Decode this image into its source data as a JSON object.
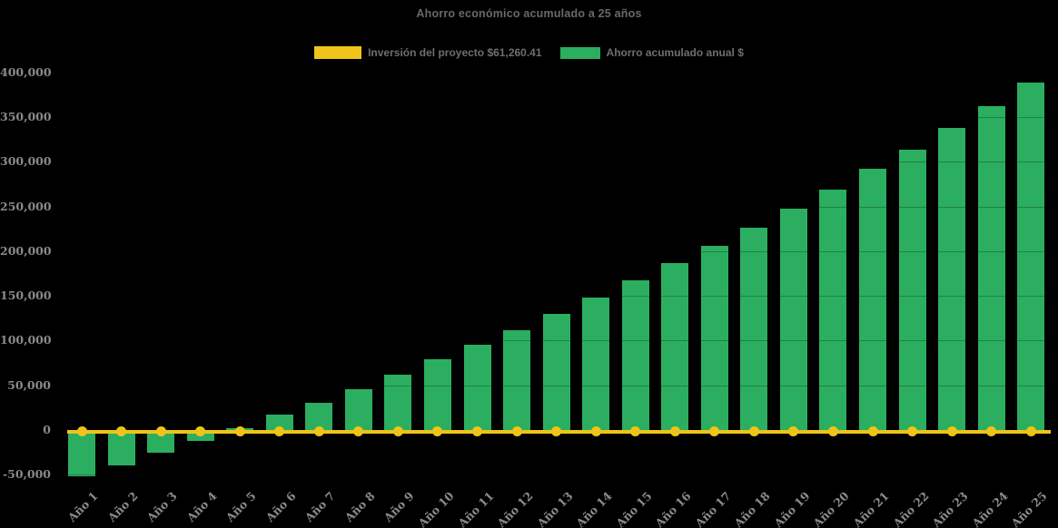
{
  "chart_data": {
    "type": "bar",
    "title": "Ahorro económico acumulado a 25 años",
    "categories": [
      "Año 1",
      "Año 2",
      "Año 3",
      "Año 4",
      "Año 5",
      "Año 6",
      "Año 7",
      "Año 8",
      "Año 9",
      "Año 10",
      "Año 11",
      "Año 12",
      "Año 13",
      "Año 14",
      "Año 15",
      "Año 16",
      "Año 17",
      "Año 18",
      "Año 19",
      "Año 20",
      "Año 21",
      "Año 22",
      "Año 23",
      "Año 24",
      "Año 25"
    ],
    "series": [
      {
        "name": "Inversión del proyecto $61,260.41",
        "type": "line",
        "color": "#EFC41A",
        "marker": "circle",
        "plotted_value": 0
      },
      {
        "name": "Ahorro acumulado anual $",
        "type": "bar",
        "color": "#2BAE60",
        "values": [
          -52000,
          -40000,
          -25000,
          -12000,
          2000,
          17000,
          30000,
          46000,
          62000,
          79000,
          95000,
          112000,
          130000,
          148000,
          167000,
          187000,
          206000,
          226000,
          247000,
          269000,
          292000,
          313000,
          338000,
          362000,
          388000
        ]
      }
    ],
    "ylim": [
      -50000,
      400000
    ],
    "ytick_step": 50000,
    "yticks": [
      {
        "value": 400000,
        "label": "400,000"
      },
      {
        "value": 350000,
        "label": "350,000"
      },
      {
        "value": 300000,
        "label": "300,000"
      },
      {
        "value": 250000,
        "label": "250,000"
      },
      {
        "value": 200000,
        "label": "200,000"
      },
      {
        "value": 150000,
        "label": "150,000"
      },
      {
        "value": 100000,
        "label": "100,000"
      },
      {
        "value": 50000,
        "label": "50,000"
      },
      {
        "value": 0,
        "label": "0"
      },
      {
        "value": -50000,
        "label": "-50,000"
      }
    ],
    "legend_position": "top",
    "grid": "faint-horizontal-over-bars",
    "background_color": "#000000",
    "axis_label_color": "#8a8a8a",
    "title_color": "#696969"
  }
}
